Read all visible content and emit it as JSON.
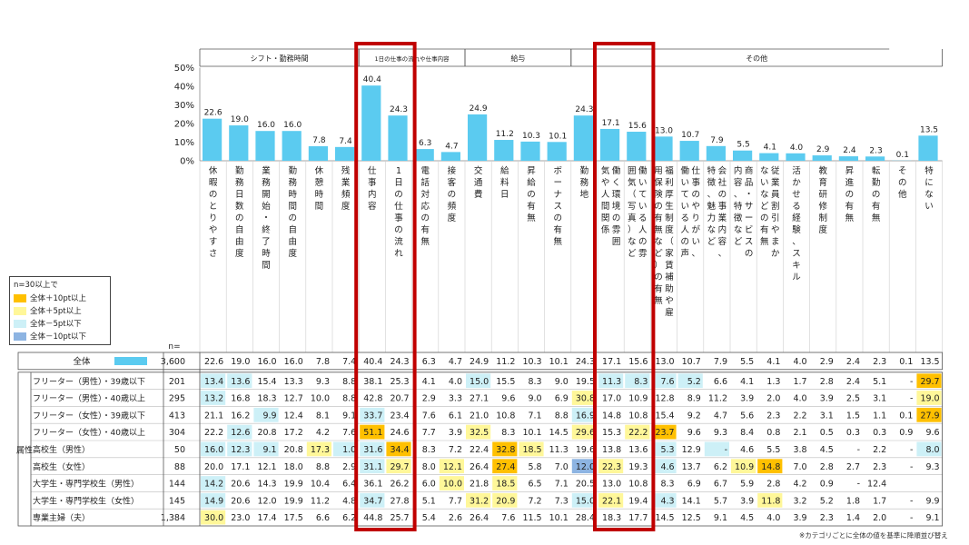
{
  "colors": {
    "bar": "#5bcbf0",
    "plus10": "#ffc000",
    "plus5": "#fff799",
    "minus5": "#cdf0f7",
    "minus10": "#8db4e2",
    "highlight_frame": "#c00000"
  },
  "chart_data": {
    "type": "bar",
    "y_ticks": [
      "50%",
      "40%",
      "30%",
      "20%",
      "10%",
      "0%"
    ],
    "ylim": [
      0,
      50
    ],
    "groups": [
      {
        "label": "シフト・勤務時間",
        "start": 0,
        "end": 5
      },
      {
        "label": "1日の仕事の流れや仕事内容",
        "start": 6,
        "end": 9
      },
      {
        "label": "給与",
        "start": 10,
        "end": 13
      },
      {
        "label": "その他",
        "start": 14,
        "end": 27
      }
    ],
    "categories": [
      "休暇のとりやすさ",
      "勤務日数の自由度",
      "業務開始・終了時間",
      "勤務時間の自由度",
      "休憩時間",
      "残業頻度",
      "仕事内容",
      "1日の仕事の流れ",
      "電話対応の有無",
      "接客の頻度",
      "交通費",
      "給料日",
      "昇給の有無",
      "ボーナスの有無",
      "勤務地",
      "働く環境の雰囲気や人間関係",
      "働いている人の雰囲気（写真）など",
      "福利厚生制度（家賃補助や雇用保険の有無など）の有無",
      "仕事のやりがい、働いている人の声",
      "会社の事業内容、特徴、魅力など",
      "商品・サービスの内容、特徴など",
      "従業員割引やまかないなどの有無",
      "活かせる経験、スキル",
      "教育研修制度",
      "昇進の有無",
      "転勤の有無",
      "その他",
      "特にない"
    ],
    "values": [
      22.6,
      19.0,
      16.0,
      16.0,
      7.8,
      7.4,
      40.4,
      24.3,
      6.3,
      4.7,
      24.9,
      11.2,
      10.3,
      10.1,
      24.3,
      17.1,
      15.6,
      13.0,
      10.7,
      7.9,
      5.5,
      4.1,
      4.0,
      2.9,
      2.4,
      2.3,
      0.1,
      13.5
    ],
    "value_labels": [
      "22.6",
      "19.0",
      "16.0",
      "16.0",
      "7.8",
      "7.4",
      "40.4",
      "24.3",
      "6.3",
      "4.7",
      "24.9",
      "11.2",
      "10.3",
      "10.1",
      "24.3",
      "17.1",
      "15.6",
      "13.0",
      "10.7",
      "7.9",
      "5.5",
      "4.1",
      "4.0",
      "2.9",
      "2.4",
      "2.3",
      "0.1",
      "13.5"
    ],
    "highlighted_columns": [
      6,
      7,
      15,
      16
    ],
    "legend": {
      "title": "n=30以上で",
      "items": [
        {
          "label": "全体＋10pt以上",
          "key": "plus10"
        },
        {
          "label": "全体＋5pt以上",
          "key": "plus5"
        },
        {
          "label": "全体－5pt以下",
          "key": "minus5"
        },
        {
          "label": "全体－10pt以下",
          "key": "minus10"
        }
      ]
    },
    "n_header": "n=",
    "total_row": {
      "label": "全体",
      "n": "3,600"
    },
    "row_group_label": "属性",
    "rows": [
      {
        "label": "フリーター（男性）・39歳以下",
        "n": "201",
        "v": [
          "13.4",
          "13.6",
          "15.4",
          "13.3",
          "9.3",
          "8.8",
          "38.1",
          "25.3",
          "4.1",
          "4.0",
          "15.0",
          "15.5",
          "8.3",
          "9.0",
          "19.5",
          "11.3",
          "8.3",
          "7.6",
          "5.2",
          "6.6",
          "4.1",
          "1.3",
          "1.7",
          "2.8",
          "2.4",
          "5.1",
          "-",
          "29.7"
        ],
        "h": [
          "m5",
          "m5",
          "",
          "",
          "",
          "",
          "",
          "",
          "",
          "",
          "m5",
          "",
          "",
          "",
          "",
          "m5",
          "m5",
          "m5",
          "m5",
          "",
          "",
          "",
          "",
          "",
          "",
          "",
          "",
          "p10"
        ]
      },
      {
        "label": "フリーター（男性）・40歳以上",
        "n": "295",
        "v": [
          "13.2",
          "16.8",
          "18.3",
          "12.7",
          "10.0",
          "8.8",
          "42.8",
          "20.7",
          "2.9",
          "3.3",
          "27.1",
          "9.6",
          "9.0",
          "6.9",
          "30.8",
          "17.0",
          "10.9",
          "12.8",
          "8.9",
          "11.2",
          "3.9",
          "2.0",
          "4.0",
          "3.9",
          "2.5",
          "3.1",
          "-",
          "19.0"
        ],
        "h": [
          "m5",
          "",
          "",
          "",
          "",
          "",
          "",
          "",
          "",
          "",
          "",
          "",
          "",
          "",
          "p5",
          "",
          "",
          "",
          "",
          "",
          "",
          "",
          "",
          "",
          "",
          "",
          "",
          "p5"
        ]
      },
      {
        "label": "フリーター（女性）・39歳以下",
        "n": "413",
        "v": [
          "21.1",
          "16.2",
          "9.9",
          "12.4",
          "8.1",
          "9.1",
          "33.7",
          "23.4",
          "7.6",
          "6.1",
          "21.0",
          "10.8",
          "7.1",
          "8.8",
          "16.9",
          "14.8",
          "10.8",
          "15.4",
          "9.2",
          "4.7",
          "5.6",
          "2.3",
          "2.2",
          "3.1",
          "1.5",
          "1.1",
          "0.1",
          "27.9"
        ],
        "h": [
          "",
          "",
          "m5",
          "",
          "",
          "",
          "m5",
          "",
          "",
          "",
          "",
          "",
          "",
          "",
          "m5",
          "",
          "",
          "",
          "",
          "",
          "",
          "",
          "",
          "",
          "",
          "",
          "",
          "p10"
        ]
      },
      {
        "label": "フリーター（女性）・40歳以上",
        "n": "304",
        "v": [
          "22.2",
          "12.6",
          "20.8",
          "17.2",
          "4.2",
          "7.6",
          "51.1",
          "24.6",
          "7.7",
          "3.9",
          "32.5",
          "8.3",
          "10.1",
          "14.5",
          "29.6",
          "15.3",
          "22.2",
          "23.7",
          "9.6",
          "9.3",
          "8.4",
          "0.8",
          "2.1",
          "0.5",
          "0.3",
          "0.3",
          "0.9",
          "9.6"
        ],
        "h": [
          "",
          "m5",
          "",
          "",
          "",
          "",
          "p10",
          "",
          "",
          "",
          "p5",
          "",
          "",
          "",
          "p5",
          "",
          "p5",
          "p10",
          "",
          "",
          "",
          "",
          "",
          "",
          "",
          "",
          "",
          ""
        ]
      },
      {
        "label": "高校生（男性）",
        "n": "50",
        "v": [
          "16.0",
          "12.3",
          "9.1",
          "20.8",
          "17.3",
          "1.0",
          "31.6",
          "34.4",
          "8.3",
          "7.2",
          "22.4",
          "32.8",
          "18.5",
          "11.3",
          "19.6",
          "13.8",
          "13.6",
          "5.3",
          "12.9",
          "-",
          "4.6",
          "5.5",
          "3.8",
          "4.5",
          "-",
          "2.2",
          "-",
          "8.0"
        ],
        "h": [
          "m5",
          "m5",
          "m5",
          "",
          "p5",
          "m5",
          "m5",
          "p10",
          "",
          "",
          "",
          "p10",
          "p5",
          "",
          "",
          "",
          "",
          "m5",
          "",
          "m5",
          "",
          "",
          "",
          "",
          "",
          "",
          "",
          "m5"
        ]
      },
      {
        "label": "高校生（女性）",
        "n": "88",
        "v": [
          "20.0",
          "17.1",
          "12.1",
          "18.0",
          "8.8",
          "2.9",
          "31.1",
          "29.7",
          "8.0",
          "12.1",
          "26.4",
          "27.4",
          "5.8",
          "7.0",
          "12.0",
          "22.3",
          "19.3",
          "4.6",
          "13.7",
          "6.2",
          "10.9",
          "14.8",
          "7.0",
          "2.8",
          "2.7",
          "2.3",
          "-",
          "9.3"
        ],
        "h": [
          "",
          "",
          "",
          "",
          "",
          "",
          "m5",
          "p5",
          "",
          "p5",
          "",
          "p10",
          "",
          "",
          "m10",
          "p5",
          "",
          "m5",
          "",
          "",
          "p5",
          "p10",
          "",
          "",
          "",
          "",
          "",
          ""
        ]
      },
      {
        "label": "大学生・専門学校生（男性）",
        "n": "144",
        "v": [
          "14.2",
          "20.6",
          "14.3",
          "19.9",
          "10.4",
          "6.4",
          "36.1",
          "26.2",
          "6.0",
          "10.0",
          "21.8",
          "18.5",
          "6.5",
          "7.1",
          "20.5",
          "13.0",
          "10.8",
          "8.3",
          "6.9",
          "6.7",
          "5.9",
          "2.8",
          "4.2",
          "0.9",
          "-",
          "12.4",
          "",
          ""
        ],
        "h": [
          "m5",
          "",
          "",
          "",
          "",
          "",
          "",
          "",
          "",
          "p5",
          "",
          "p5",
          "",
          "",
          "",
          "",
          "",
          "",
          "",
          "",
          "",
          "",
          "",
          "",
          "",
          "",
          "",
          ""
        ]
      },
      {
        "label": "大学生・専門学校生（女性）",
        "n": "145",
        "v": [
          "14.9",
          "20.6",
          "12.0",
          "19.9",
          "11.2",
          "4.8",
          "34.7",
          "27.8",
          "5.1",
          "7.7",
          "31.2",
          "20.9",
          "7.2",
          "7.3",
          "15.0",
          "22.1",
          "19.4",
          "4.3",
          "14.1",
          "5.7",
          "3.9",
          "11.8",
          "3.2",
          "5.2",
          "1.8",
          "1.7",
          "-",
          "9.9"
        ],
        "h": [
          "m5",
          "",
          "",
          "",
          "",
          "",
          "m5",
          "",
          "",
          "",
          "p5",
          "p5",
          "",
          "",
          "m5",
          "p5",
          "",
          "m5",
          "",
          "",
          "",
          "p5",
          "",
          "",
          "",
          "",
          "",
          ""
        ]
      },
      {
        "label": "専業主婦（夫）",
        "n": "1,384",
        "v": [
          "30.0",
          "23.0",
          "17.4",
          "17.5",
          "6.6",
          "6.2",
          "44.8",
          "25.7",
          "5.4",
          "2.6",
          "26.4",
          "7.6",
          "11.5",
          "10.1",
          "28.4",
          "18.3",
          "17.7",
          "14.5",
          "12.5",
          "9.1",
          "4.5",
          "4.0",
          "3.9",
          "2.3",
          "1.4",
          "2.0",
          "-",
          "9.1"
        ],
        "h": [
          "p5",
          "",
          "",
          "",
          "",
          "",
          "",
          "",
          "",
          "",
          "",
          "",
          "",
          "",
          "",
          "",
          "",
          "",
          "",
          "",
          "",
          "",
          "",
          "",
          "",
          "",
          "",
          ""
        ]
      }
    ],
    "footnote": "※カテゴリごとに全体の値を基準に降順並び替え"
  }
}
